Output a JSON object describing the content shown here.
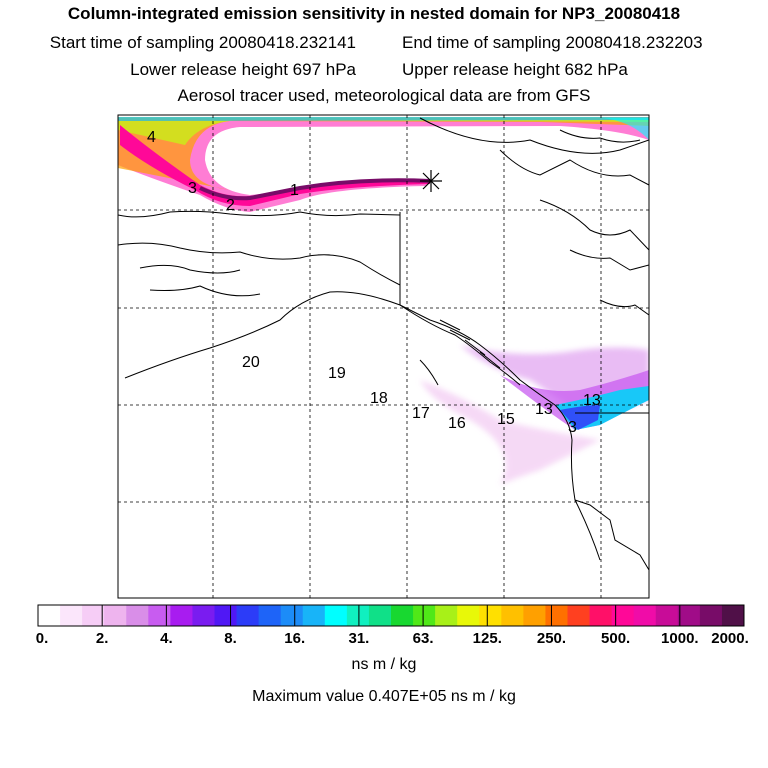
{
  "header": {
    "title": "Column-integrated emission sensitivity in nested domain for NP3_20080418",
    "start_time": "Start time of sampling 20080418.232141",
    "end_time": "End time of sampling 20080418.232203",
    "lower_release": "Lower release height  697 hPa",
    "upper_release": "Upper release height  682 hPa",
    "tracer_note": "Aerosol tracer used, meteorological data are from GFS"
  },
  "map": {
    "day_markers": [
      "4",
      "3",
      "2",
      "1",
      "20",
      "19",
      "18",
      "17",
      "16",
      "15",
      "13",
      "13",
      "3"
    ]
  },
  "colorbar": {
    "colors": [
      "#ffffff",
      "#fbe6fb",
      "#f6cdf6",
      "#eeb4ee",
      "#d98ee8",
      "#c85cf0",
      "#a81cf0",
      "#7a1cf0",
      "#5018f5",
      "#2c3cf8",
      "#1e64f8",
      "#1c8cf8",
      "#18b4f8",
      "#00ffff",
      "#10f0c0",
      "#10e088",
      "#18d830",
      "#50e818",
      "#a8f018",
      "#e8f808",
      "#ffe000",
      "#ffc000",
      "#ffa000",
      "#ff7000",
      "#ff4020",
      "#ff1068",
      "#ff0898",
      "#f00ca8",
      "#c80c98",
      "#a00c88",
      "#780c68",
      "#501048"
    ],
    "labels": [
      "0.",
      "2.",
      "4.",
      "8.",
      "16.",
      "31.",
      "63.",
      "125.",
      "250.",
      "500.",
      "1000.",
      "2000."
    ],
    "unit": "ns m / kg"
  },
  "max_value": "Maximum value  0.407E+05 ns m / kg"
}
